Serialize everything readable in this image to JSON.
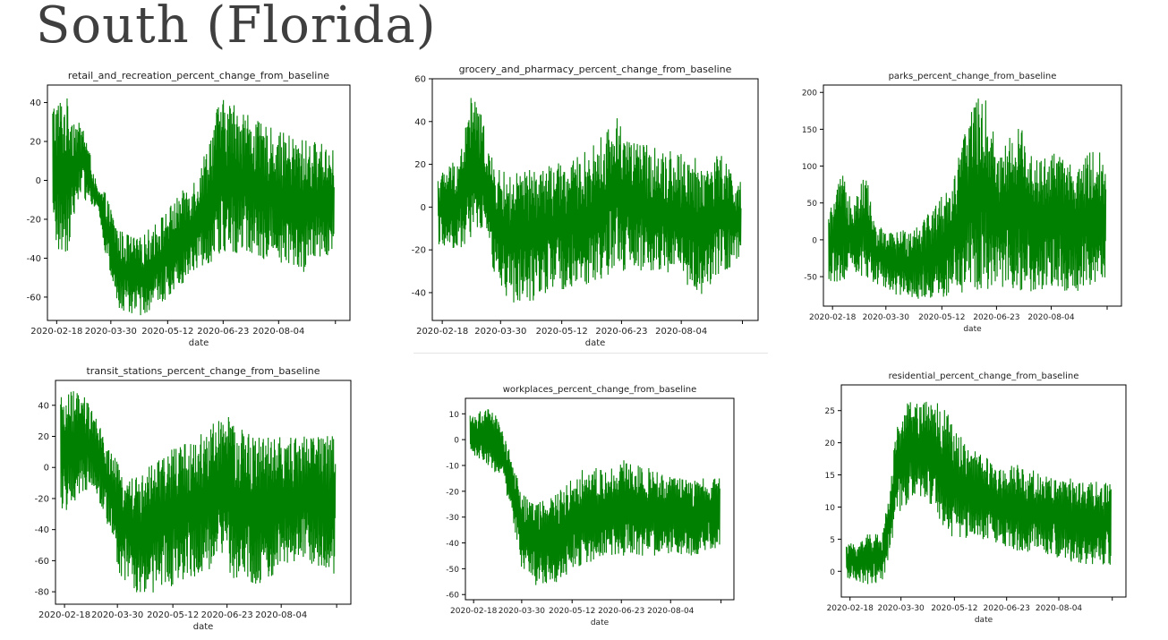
{
  "slide": {
    "title": "South (Florida)"
  },
  "chart_data": [
    {
      "type": "line",
      "title": "retail_and_recreation_percent_change_from_baseline",
      "xlabel": "date",
      "ylabel": "",
      "x_ticks": [
        "2020-02-18",
        "2020-03-30",
        "2020-05-12",
        "2020-06-23",
        "2020-08-04"
      ],
      "y_ticks": [
        40,
        20,
        0,
        -20,
        -40,
        -60
      ],
      "ylim": [
        -72,
        49
      ],
      "xlim": [
        "2020-02-11",
        "2020-09-27"
      ],
      "color": "#008000",
      "series": [
        {
          "x_start": "2020-02-15",
          "x_end": "2020-09-15",
          "envelope": [
            [
              "2020-02-15",
              -35,
              42
            ],
            [
              "2020-02-25",
              -40,
              44
            ],
            [
              "2020-03-05",
              -10,
              30
            ],
            [
              "2020-03-10",
              -10,
              28
            ],
            [
              "2020-03-20",
              -15,
              -5
            ],
            [
              "2020-03-25",
              -35,
              -5
            ],
            [
              "2020-04-05",
              -68,
              -25
            ],
            [
              "2020-04-20",
              -70,
              -30
            ],
            [
              "2020-05-05",
              -65,
              -20
            ],
            [
              "2020-05-20",
              -55,
              -8
            ],
            [
              "2020-06-05",
              -45,
              5
            ],
            [
              "2020-06-20",
              -40,
              42
            ],
            [
              "2020-07-05",
              -38,
              40
            ],
            [
              "2020-07-20",
              -40,
              30
            ],
            [
              "2020-08-05",
              -42,
              25
            ],
            [
              "2020-08-20",
              -50,
              22
            ],
            [
              "2020-09-01",
              -40,
              20
            ],
            [
              "2020-09-15",
              -38,
              18
            ]
          ]
        }
      ]
    },
    {
      "type": "line",
      "title": "grocery_and_pharmacy_percent_change_from_baseline",
      "xlabel": "date",
      "ylabel": "",
      "x_ticks": [
        "2020-02-18",
        "2020-03-30",
        "2020-05-12",
        "2020-06-23",
        "2020-08-04"
      ],
      "y_ticks": [
        60,
        40,
        20,
        0,
        -20,
        -40
      ],
      "ylim": [
        -53,
        60
      ],
      "xlim": [
        "2020-02-11",
        "2020-09-27"
      ],
      "color": "#008000",
      "series": [
        {
          "x_start": "2020-02-15",
          "x_end": "2020-09-15",
          "envelope": [
            [
              "2020-02-15",
              -18,
              15
            ],
            [
              "2020-03-01",
              -20,
              25
            ],
            [
              "2020-03-10",
              -15,
              55
            ],
            [
              "2020-03-18",
              -10,
              40
            ],
            [
              "2020-03-25",
              -30,
              20
            ],
            [
              "2020-04-05",
              -45,
              15
            ],
            [
              "2020-04-20",
              -45,
              18
            ],
            [
              "2020-05-05",
              -40,
              20
            ],
            [
              "2020-05-20",
              -38,
              22
            ],
            [
              "2020-06-05",
              -35,
              30
            ],
            [
              "2020-06-20",
              -30,
              43
            ],
            [
              "2020-07-05",
              -30,
              30
            ],
            [
              "2020-07-20",
              -32,
              28
            ],
            [
              "2020-08-05",
              -35,
              25
            ],
            [
              "2020-08-20",
              -42,
              22
            ],
            [
              "2020-09-01",
              -30,
              25
            ],
            [
              "2020-09-15",
              -28,
              12
            ]
          ]
        }
      ]
    },
    {
      "type": "line",
      "title": "parks_percent_change_from_baseline",
      "xlabel": "date",
      "ylabel": "",
      "x_ticks": [
        "2020-02-18",
        "2020-03-30",
        "2020-05-12",
        "2020-06-23",
        "2020-08-04"
      ],
      "y_ticks": [
        200,
        150,
        100,
        50,
        0,
        -50
      ],
      "ylim": [
        -90,
        210
      ],
      "xlim": [
        "2020-02-11",
        "2020-09-27"
      ],
      "color": "#008000",
      "series": [
        {
          "x_start": "2020-02-15",
          "x_end": "2020-09-15",
          "envelope": [
            [
              "2020-02-15",
              -60,
              35
            ],
            [
              "2020-02-25",
              -55,
              90
            ],
            [
              "2020-03-05",
              -50,
              60
            ],
            [
              "2020-03-15",
              -50,
              90
            ],
            [
              "2020-03-22",
              -60,
              20
            ],
            [
              "2020-04-05",
              -75,
              10
            ],
            [
              "2020-04-20",
              -80,
              20
            ],
            [
              "2020-05-05",
              -80,
              45
            ],
            [
              "2020-05-20",
              -75,
              80
            ],
            [
              "2020-06-05",
              -70,
              195
            ],
            [
              "2020-06-15",
              -70,
              190
            ],
            [
              "2020-06-25",
              -65,
              120
            ],
            [
              "2020-07-10",
              -70,
              160
            ],
            [
              "2020-07-25",
              -70,
              110
            ],
            [
              "2020-08-10",
              -70,
              120
            ],
            [
              "2020-08-25",
              -70,
              95
            ],
            [
              "2020-09-05",
              -65,
              130
            ],
            [
              "2020-09-15",
              -55,
              110
            ]
          ]
        }
      ]
    },
    {
      "type": "line",
      "title": "transit_stations_percent_change_from_baseline",
      "xlabel": "date",
      "ylabel": "",
      "x_ticks": [
        "2020-02-18",
        "2020-03-30",
        "2020-05-12",
        "2020-06-23",
        "2020-08-04"
      ],
      "y_ticks": [
        40,
        20,
        0,
        -20,
        -40,
        -60,
        -80
      ],
      "ylim": [
        -88,
        56
      ],
      "xlim": [
        "2020-02-11",
        "2020-09-27"
      ],
      "color": "#008000",
      "series": [
        {
          "x_start": "2020-02-15",
          "x_end": "2020-09-15",
          "envelope": [
            [
              "2020-02-15",
              -30,
              45
            ],
            [
              "2020-02-25",
              -25,
              50
            ],
            [
              "2020-03-05",
              -15,
              45
            ],
            [
              "2020-03-12",
              -15,
              35
            ],
            [
              "2020-03-20",
              -30,
              20
            ],
            [
              "2020-04-01",
              -70,
              0
            ],
            [
              "2020-04-15",
              -82,
              -5
            ],
            [
              "2020-05-01",
              -80,
              5
            ],
            [
              "2020-05-15",
              -75,
              15
            ],
            [
              "2020-06-01",
              -70,
              20
            ],
            [
              "2020-06-20",
              -65,
              37
            ],
            [
              "2020-07-05",
              -78,
              25
            ],
            [
              "2020-07-20",
              -75,
              20
            ],
            [
              "2020-08-05",
              -65,
              20
            ],
            [
              "2020-08-20",
              -60,
              20
            ],
            [
              "2020-09-01",
              -65,
              25
            ],
            [
              "2020-09-15",
              -70,
              20
            ]
          ]
        }
      ]
    },
    {
      "type": "line",
      "title": "workplaces_percent_change_from_baseline",
      "xlabel": "date",
      "ylabel": "",
      "x_ticks": [
        "2020-02-18",
        "2020-03-30",
        "2020-05-12",
        "2020-06-23",
        "2020-08-04"
      ],
      "y_ticks": [
        10,
        0,
        -10,
        -20,
        -30,
        -40,
        -50,
        -60
      ],
      "ylim": [
        -62,
        16
      ],
      "xlim": [
        "2020-02-11",
        "2020-09-27"
      ],
      "color": "#008000",
      "series": [
        {
          "x_start": "2020-02-15",
          "x_end": "2020-09-15",
          "envelope": [
            [
              "2020-02-15",
              -5,
              10
            ],
            [
              "2020-03-01",
              -10,
              12
            ],
            [
              "2020-03-12",
              -15,
              8
            ],
            [
              "2020-03-20",
              -25,
              -5
            ],
            [
              "2020-03-30",
              -50,
              -20
            ],
            [
              "2020-04-10",
              -57,
              -25
            ],
            [
              "2020-04-25",
              -57,
              -22
            ],
            [
              "2020-05-10",
              -52,
              -15
            ],
            [
              "2020-05-25",
              -48,
              -10
            ],
            [
              "2020-06-10",
              -45,
              -12
            ],
            [
              "2020-06-25",
              -45,
              -8
            ],
            [
              "2020-07-10",
              -45,
              -10
            ],
            [
              "2020-07-25",
              -45,
              -12
            ],
            [
              "2020-08-10",
              -45,
              -15
            ],
            [
              "2020-08-25",
              -45,
              -15
            ],
            [
              "2020-09-15",
              -42,
              -15
            ]
          ]
        }
      ]
    },
    {
      "type": "line",
      "title": "residential_percent_change_from_baseline",
      "xlabel": "date",
      "ylabel": "",
      "x_ticks": [
        "2020-02-18",
        "2020-03-30",
        "2020-05-12",
        "2020-06-23",
        "2020-08-04"
      ],
      "y_ticks": [
        25,
        20,
        15,
        10,
        5,
        0
      ],
      "ylim": [
        -4,
        29
      ],
      "xlim": [
        "2020-02-11",
        "2020-09-27"
      ],
      "color": "#008000",
      "series": [
        {
          "x_start": "2020-02-15",
          "x_end": "2020-09-15",
          "envelope": [
            [
              "2020-02-15",
              -1,
              4
            ],
            [
              "2020-02-25",
              -2,
              5
            ],
            [
              "2020-03-05",
              -2,
              6
            ],
            [
              "2020-03-15",
              -2,
              6
            ],
            [
              "2020-03-20",
              2,
              12
            ],
            [
              "2020-03-28",
              8,
              25
            ],
            [
              "2020-04-10",
              12,
              27
            ],
            [
              "2020-04-25",
              10,
              27
            ],
            [
              "2020-05-05",
              5,
              25
            ],
            [
              "2020-05-20",
              5,
              20
            ],
            [
              "2020-06-05",
              5,
              18
            ],
            [
              "2020-06-20",
              4,
              16
            ],
            [
              "2020-07-05",
              3,
              17
            ],
            [
              "2020-07-20",
              3,
              15
            ],
            [
              "2020-08-05",
              2,
              15
            ],
            [
              "2020-08-20",
              1,
              14
            ],
            [
              "2020-09-15",
              1,
              14
            ]
          ]
        }
      ]
    }
  ]
}
